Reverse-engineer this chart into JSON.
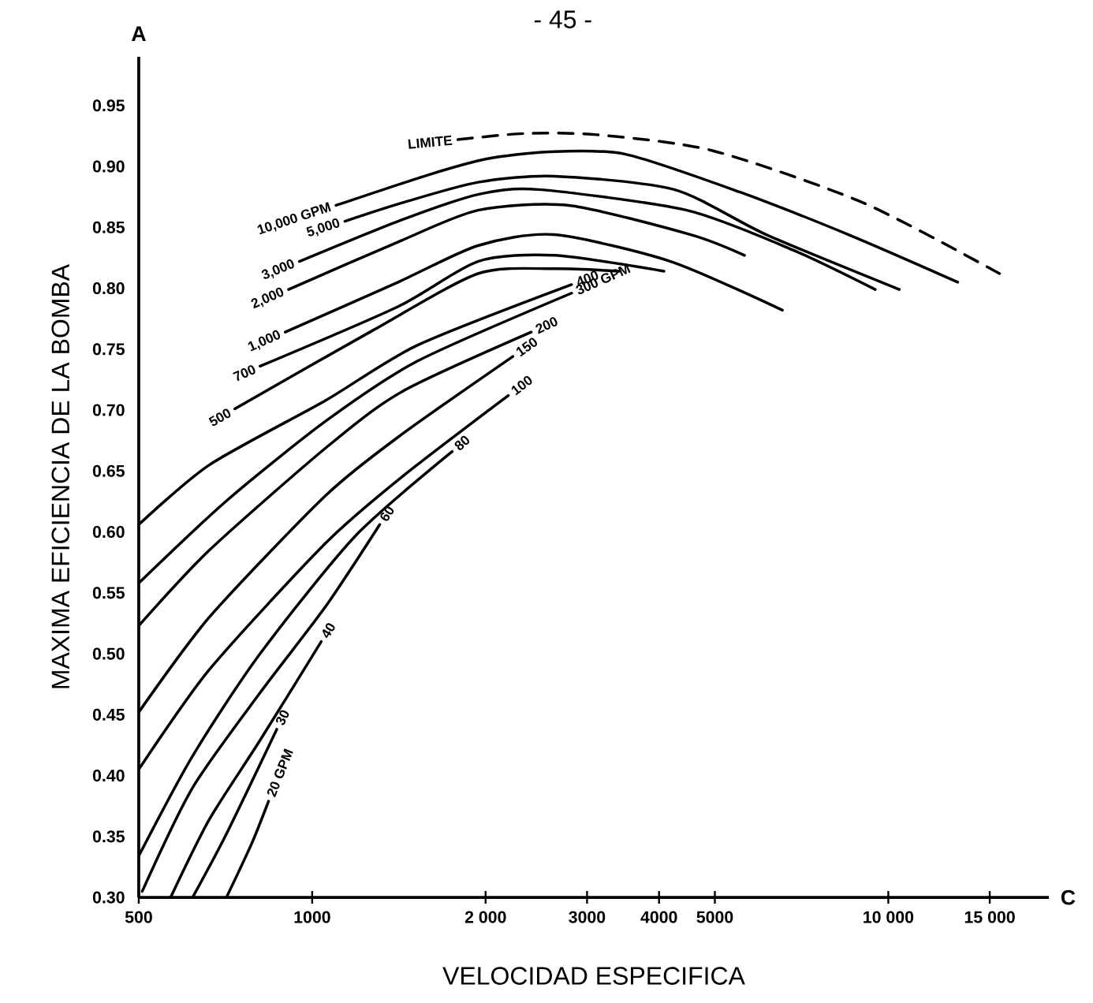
{
  "chart_data": {
    "type": "line",
    "xlabel": "VELOCIDAD ESPECIFICA",
    "ylabel": "MAXIMA EFICIENCIA DE LA BOMBA",
    "annotations": [
      "- 45 -",
      "A",
      "C"
    ],
    "log": "x",
    "xlim": [
      500,
      19000
    ],
    "ylim": [
      0.3,
      0.99
    ],
    "xticks": [
      500,
      1000,
      {
        "value": 2000,
        "label": "2 000"
      },
      3000,
      4000,
      5000,
      {
        "value": 10000,
        "label": "10 000"
      },
      {
        "value": 15000,
        "label": "15 000"
      }
    ],
    "yticks": [
      {
        "value": 0.3,
        "label": "0.30"
      },
      {
        "value": 0.35,
        "label": "0.35"
      },
      {
        "value": 0.4,
        "label": "0.40"
      },
      {
        "value": 0.45,
        "label": "0.45"
      },
      {
        "value": 0.5,
        "label": "0.50"
      },
      {
        "value": 0.55,
        "label": "0.55"
      },
      {
        "value": 0.6,
        "label": "0.60"
      },
      {
        "value": 0.65,
        "label": "0.65"
      },
      {
        "value": 0.7,
        "label": "0.70"
      },
      {
        "value": 0.75,
        "label": "0.75"
      },
      {
        "value": 0.8,
        "label": "0.80"
      },
      {
        "value": 0.85,
        "label": "0.85"
      },
      {
        "value": 0.9,
        "label": "0.90"
      },
      {
        "value": 0.95,
        "label": "0.95"
      }
    ],
    "grid": false,
    "legend": false,
    "line_style": "solid",
    "series": [
      {
        "name": "LIMITE",
        "color": "#000000",
        "line_style": "dashed",
        "x": [
          1790,
          2330,
          3120,
          4950,
          9060,
          15600
        ],
        "values": [
          0.922,
          0.927,
          0.926,
          0.913,
          0.87,
          0.812
        ]
      },
      {
        "name": "10,000 GPM",
        "color": "#000000",
        "x": [
          1100,
          1590,
          2000,
          2580,
          3500,
          5520,
          8530,
          13200
        ],
        "values": [
          0.868,
          0.893,
          0.906,
          0.912,
          0.91,
          0.879,
          0.844,
          0.805
        ]
      },
      {
        "name": "5,000",
        "color": "#000000",
        "x": [
          1140,
          1430,
          1940,
          2630,
          4250,
          6140,
          10450
        ],
        "values": [
          0.855,
          0.87,
          0.887,
          0.892,
          0.881,
          0.844,
          0.799
        ]
      },
      {
        "name": "3,000",
        "color": "#000000",
        "x": [
          950,
          1410,
          1940,
          2470,
          4470,
          6860,
          9490
        ],
        "values": [
          0.822,
          0.855,
          0.877,
          0.881,
          0.864,
          0.831,
          0.799
        ]
      },
      {
        "name": "2,000",
        "color": "#000000",
        "x": [
          910,
          1410,
          1940,
          2790,
          4540,
          5630
        ],
        "values": [
          0.799,
          0.838,
          0.864,
          0.868,
          0.844,
          0.827
        ]
      },
      {
        "name": "1,000",
        "color": "#000000",
        "x": [
          898,
          1410,
          1940,
          2630,
          4190,
          6550
        ],
        "values": [
          0.764,
          0.805,
          0.835,
          0.844,
          0.822,
          0.782
        ]
      },
      {
        "name": "700",
        "color": "#000000",
        "x": [
          812,
          1410,
          1940,
          2630,
          4080
        ],
        "values": [
          0.736,
          0.785,
          0.822,
          0.827,
          0.814
        ]
      },
      {
        "name": "500",
        "color": "#000000",
        "x": [
          734,
          1270,
          1940,
          2630,
          3410
        ],
        "values": [
          0.701,
          0.765,
          0.812,
          0.816,
          0.814
        ]
      },
      {
        "name": "400",
        "color": "#000000",
        "x": [
          500,
          663,
          1056,
          1520,
          2820
        ],
        "values": [
          0.606,
          0.655,
          0.708,
          0.753,
          0.803
        ]
      },
      {
        "name": "300 GPM",
        "color": "#000000",
        "x": [
          500,
          708,
          1056,
          1520,
          2820
        ],
        "values": [
          0.558,
          0.625,
          0.691,
          0.74,
          0.796
        ]
      },
      {
        "name": "200",
        "color": "#000000",
        "x": [
          500,
          663,
          1056,
          1430,
          2400
        ],
        "values": [
          0.523,
          0.585,
          0.669,
          0.715,
          0.764
        ]
      },
      {
        "name": "150",
        "color": "#000000",
        "x": [
          500,
          663,
          1056,
          1430,
          2230
        ],
        "values": [
          0.452,
          0.53,
          0.63,
          0.68,
          0.744
        ]
      },
      {
        "name": "100",
        "color": "#000000",
        "x": [
          500,
          663,
          1056,
          1430,
          2190
        ],
        "values": [
          0.405,
          0.487,
          0.591,
          0.645,
          0.712
        ]
      },
      {
        "name": "80",
        "color": "#000000",
        "x": [
          500,
          620,
          812,
          1190,
          1750
        ],
        "values": [
          0.334,
          0.416,
          0.5,
          0.597,
          0.666
        ]
      },
      {
        "name": "60",
        "color": "#000000",
        "x": [
          507,
          620,
          812,
          1056,
          1310
        ],
        "values": [
          0.305,
          0.39,
          0.468,
          0.539,
          0.606
        ]
      },
      {
        "name": "40",
        "color": "#000000",
        "x": [
          568,
          663,
          812,
          1037
        ],
        "values": [
          0.3,
          0.364,
          0.429,
          0.51
        ]
      },
      {
        "name": "30",
        "color": "#000000",
        "x": [
          620,
          708,
          868
        ],
        "values": [
          0.3,
          0.351,
          0.438
        ]
      },
      {
        "name": "20 GPM",
        "color": "#000000",
        "x": [
          710,
          785,
          840
        ],
        "values": [
          0.3,
          0.344,
          0.379
        ]
      }
    ]
  }
}
